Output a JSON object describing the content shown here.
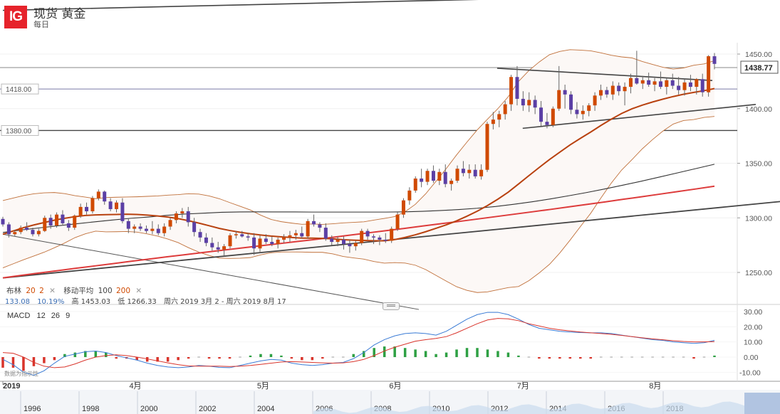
{
  "header": {
    "logo": "IG",
    "title": "现货 黄金",
    "subtitle": "每日"
  },
  "indicators": {
    "bollinger_label": "布林",
    "bollinger_period": "20",
    "bollinger_dev": "2",
    "ma_label": "移动平均",
    "ma_fast": "100",
    "ma_slow": "200",
    "close_icon": "close-icon",
    "value_1": "133.08",
    "value_2": "10.19%",
    "high_label": "高",
    "high_value": "1453.03",
    "low_label": "低",
    "low_value": "1266.33",
    "range_text": "周六 2019 3月 2 - 周六 2019 8月 17"
  },
  "macd": {
    "label": "MACD",
    "p1": "12",
    "p2": "26",
    "p3": "9"
  },
  "data_source": "数据为指示性",
  "colors": {
    "up": "#d04a02",
    "down": "#5b3fa5",
    "ma100": "#333333",
    "ma200": "#dd3b3b",
    "bb_mid": "#b8410f",
    "bb_band": "#c0703a",
    "trendline": "#555555",
    "macd_line": "#3a7bd5",
    "signal_line": "#d9342b",
    "hist_pos": "#2ea043",
    "hist_neg": "#d9342b"
  },
  "chart_data": {
    "type": "candlestick",
    "instrument": "现货 黄金",
    "timeframe": "每日",
    "price_axis": {
      "ticks": [
        1250.0,
        1300.0,
        1350.0,
        1400.0,
        1450.0
      ],
      "range": [
        1225,
        1505
      ]
    },
    "current_price": 1438.77,
    "horizontal_levels": [
      1418.0,
      1380.0
    ],
    "x_axis_labels": [
      "2019",
      "4月",
      "5月",
      "6月",
      "7月",
      "8月"
    ],
    "navigator_years": [
      "1996",
      "1998",
      "2000",
      "2002",
      "2004",
      "2006",
      "2008",
      "2010",
      "2012",
      "2014",
      "2016",
      "2018"
    ],
    "macd_axis": {
      "ticks": [
        30.0,
        20.0,
        10.0,
        0.0,
        -10.0
      ],
      "range": [
        -17,
        33
      ]
    },
    "start": "2019-03-01",
    "end": "2019-08-15",
    "candles": [
      [
        1299,
        1301,
        1292,
        1294
      ],
      [
        1294,
        1296,
        1282,
        1285
      ],
      [
        1285,
        1289,
        1283,
        1287
      ],
      [
        1287,
        1293,
        1285,
        1291
      ],
      [
        1291,
        1296,
        1288,
        1289
      ],
      [
        1289,
        1291,
        1283,
        1285
      ],
      [
        1285,
        1290,
        1283,
        1288
      ],
      [
        1288,
        1302,
        1287,
        1300
      ],
      [
        1300,
        1303,
        1290,
        1293
      ],
      [
        1293,
        1305,
        1291,
        1303
      ],
      [
        1303,
        1307,
        1293,
        1295
      ],
      [
        1295,
        1298,
        1288,
        1291
      ],
      [
        1291,
        1303,
        1289,
        1302
      ],
      [
        1302,
        1313,
        1300,
        1310
      ],
      [
        1310,
        1314,
        1303,
        1306
      ],
      [
        1306,
        1320,
        1304,
        1318
      ],
      [
        1318,
        1326,
        1316,
        1324
      ],
      [
        1324,
        1325,
        1312,
        1315
      ],
      [
        1315,
        1318,
        1306,
        1308
      ],
      [
        1308,
        1316,
        1305,
        1314
      ],
      [
        1314,
        1318,
        1295,
        1297
      ],
      [
        1297,
        1299,
        1286,
        1290
      ],
      [
        1290,
        1294,
        1286,
        1292
      ],
      [
        1292,
        1295,
        1288,
        1290
      ],
      [
        1290,
        1293,
        1286,
        1288
      ],
      [
        1288,
        1297,
        1285,
        1290
      ],
      [
        1290,
        1294,
        1284,
        1286
      ],
      [
        1286,
        1295,
        1283,
        1292
      ],
      [
        1292,
        1300,
        1289,
        1298
      ],
      [
        1298,
        1306,
        1295,
        1304
      ],
      [
        1304,
        1309,
        1300,
        1306
      ],
      [
        1306,
        1310,
        1292,
        1296
      ],
      [
        1296,
        1300,
        1283,
        1287
      ],
      [
        1287,
        1290,
        1278,
        1282
      ],
      [
        1282,
        1286,
        1274,
        1277
      ],
      [
        1277,
        1282,
        1270,
        1273
      ],
      [
        1273,
        1278,
        1268,
        1271
      ],
      [
        1271,
        1276,
        1265,
        1274
      ],
      [
        1274,
        1286,
        1272,
        1284
      ],
      [
        1284,
        1288,
        1281,
        1285
      ],
      [
        1285,
        1288,
        1282,
        1283
      ],
      [
        1283,
        1286,
        1279,
        1282
      ],
      [
        1282,
        1286,
        1266,
        1272
      ],
      [
        1272,
        1284,
        1269,
        1281
      ],
      [
        1281,
        1285,
        1276,
        1278
      ],
      [
        1278,
        1283,
        1274,
        1276
      ],
      [
        1276,
        1282,
        1272,
        1280
      ],
      [
        1280,
        1285,
        1277,
        1282
      ],
      [
        1282,
        1288,
        1278,
        1284
      ],
      [
        1284,
        1289,
        1280,
        1286
      ],
      [
        1286,
        1292,
        1281,
        1283
      ],
      [
        1283,
        1299,
        1281,
        1297
      ],
      [
        1297,
        1303,
        1292,
        1294
      ],
      [
        1294,
        1296,
        1287,
        1291
      ],
      [
        1291,
        1295,
        1279,
        1281
      ],
      [
        1281,
        1284,
        1275,
        1278
      ],
      [
        1278,
        1283,
        1274,
        1280
      ],
      [
        1280,
        1283,
        1271,
        1276
      ],
      [
        1276,
        1280,
        1268,
        1274
      ],
      [
        1274,
        1279,
        1270,
        1277
      ],
      [
        1277,
        1290,
        1275,
        1288
      ],
      [
        1288,
        1290,
        1280,
        1283
      ],
      [
        1283,
        1285,
        1276,
        1282
      ],
      [
        1282,
        1284,
        1275,
        1280
      ],
      [
        1280,
        1286,
        1277,
        1279
      ],
      [
        1279,
        1292,
        1277,
        1290
      ],
      [
        1290,
        1305,
        1288,
        1303
      ],
      [
        1303,
        1318,
        1300,
        1316
      ],
      [
        1316,
        1328,
        1312,
        1325
      ],
      [
        1325,
        1338,
        1323,
        1336
      ],
      [
        1336,
        1345,
        1328,
        1333
      ],
      [
        1333,
        1345,
        1330,
        1343
      ],
      [
        1343,
        1348,
        1332,
        1334
      ],
      [
        1334,
        1345,
        1330,
        1342
      ],
      [
        1342,
        1349,
        1328,
        1331
      ],
      [
        1331,
        1336,
        1325,
        1334
      ],
      [
        1334,
        1348,
        1332,
        1345
      ],
      [
        1345,
        1352,
        1338,
        1341
      ],
      [
        1341,
        1349,
        1336,
        1344
      ],
      [
        1344,
        1349,
        1336,
        1338
      ],
      [
        1338,
        1349,
        1335,
        1344
      ],
      [
        1344,
        1388,
        1342,
        1386
      ],
      [
        1386,
        1397,
        1381,
        1390
      ],
      [
        1390,
        1398,
        1383,
        1395
      ],
      [
        1395,
        1407,
        1390,
        1404
      ],
      [
        1404,
        1431,
        1398,
        1429
      ],
      [
        1429,
        1439,
        1403,
        1409
      ],
      [
        1409,
        1416,
        1398,
        1403
      ],
      [
        1403,
        1415,
        1397,
        1408
      ],
      [
        1408,
        1412,
        1395,
        1401
      ],
      [
        1401,
        1407,
        1384,
        1388
      ],
      [
        1388,
        1396,
        1382,
        1385
      ],
      [
        1385,
        1402,
        1383,
        1400
      ],
      [
        1400,
        1439,
        1398,
        1417
      ],
      [
        1417,
        1422,
        1400,
        1413
      ],
      [
        1413,
        1416,
        1395,
        1399
      ],
      [
        1399,
        1406,
        1391,
        1395
      ],
      [
        1395,
        1403,
        1390,
        1398
      ],
      [
        1398,
        1405,
        1393,
        1403
      ],
      [
        1403,
        1415,
        1398,
        1412
      ],
      [
        1412,
        1422,
        1408,
        1417
      ],
      [
        1417,
        1420,
        1410,
        1413
      ],
      [
        1413,
        1425,
        1408,
        1421
      ],
      [
        1421,
        1424,
        1412,
        1416
      ],
      [
        1416,
        1424,
        1403,
        1420
      ],
      [
        1420,
        1432,
        1414,
        1428
      ],
      [
        1428,
        1453,
        1422,
        1423
      ],
      [
        1423,
        1430,
        1418,
        1426
      ],
      [
        1426,
        1433,
        1420,
        1422
      ],
      [
        1422,
        1428,
        1416,
        1425
      ],
      [
        1425,
        1434,
        1418,
        1420
      ],
      [
        1420,
        1428,
        1413,
        1426
      ],
      [
        1426,
        1432,
        1418,
        1421
      ],
      [
        1421,
        1429,
        1413,
        1417
      ],
      [
        1417,
        1427,
        1412,
        1424
      ],
      [
        1424,
        1431,
        1416,
        1420
      ],
      [
        1420,
        1428,
        1413,
        1427
      ],
      [
        1427,
        1432,
        1411,
        1415
      ],
      [
        1415,
        1449,
        1411,
        1448
      ],
      [
        1448,
        1451,
        1436,
        1441
      ]
    ],
    "ma100": [
      1286.6,
      1288.9,
      1290.8,
      1292.7,
      1294.5,
      1296.3,
      1298.0,
      1299.6,
      1300.8,
      1302.3,
      1303.5,
      1304.3,
      1305.1,
      1305.4,
      1305.5,
      1305.4,
      1305.4,
      1305.3,
      1305.3,
      1305.3,
      1305.3,
      1305.3,
      1305.5,
      1306.0,
      1306.7,
      1307.6,
      1308.8,
      1310.4,
      1312.4,
      1314.7,
      1317.3,
      1320.2,
      1323.2,
      1326.5,
      1330.0,
      1333.6,
      1337.4,
      1341.3,
      1345.2,
      1349.1
    ],
    "ma200": [
      1245.0,
      1247.3,
      1249.5,
      1251.6,
      1253.8,
      1255.9,
      1258.0,
      1260.2,
      1262.2,
      1264.3,
      1266.3,
      1268.3,
      1270.3,
      1272.2,
      1274.2,
      1276.1,
      1278.1,
      1280.0,
      1282.0,
      1284.1,
      1286.2,
      1288.3,
      1290.3,
      1292.5,
      1294.6,
      1296.7,
      1298.9,
      1301.1,
      1303.3,
      1305.5,
      1307.7,
      1310.0,
      1312.3,
      1314.6,
      1317.0,
      1319.3,
      1321.7,
      1324.1,
      1326.5,
      1329.0
    ],
    "bollinger_mid": [
      1285.0,
      1288.0,
      1291.0,
      1293.5,
      1295.7,
      1297.9,
      1299.6,
      1301.1,
      1302.2,
      1302.7,
      1302.9,
      1303.1,
      1303.3,
      1303.1,
      1302.5,
      1301.7,
      1300.7,
      1299.3,
      1297.4,
      1295.2,
      1292.8,
      1290.3,
      1288.4,
      1286.8,
      1285.4,
      1284.3,
      1283.3,
      1282.6,
      1282.0,
      1281.4,
      1281.4,
      1281.2,
      1280.8,
      1280.0,
      1279.6,
      1279.3,
      1279.0,
      1279.0,
      1280.1,
      1282.1,
      1284.5,
      1287.3,
      1290.4,
      1293.6,
      1297.3,
      1301.5,
      1306.1,
      1311.3,
      1317.1,
      1323.5,
      1331.0,
      1338.6,
      1346.1,
      1353.4,
      1360.1,
      1366.8,
      1372.8,
      1378.6,
      1384.7,
      1390.4,
      1395.6,
      1399.9,
      1403.2,
      1406.1,
      1408.7,
      1411.1,
      1413.2,
      1414.9,
      1416.5,
      1418.4
    ],
    "bollinger_upper": [
      1315.8,
      1318.1,
      1320.4,
      1322.0,
      1322.9,
      1323.2,
      1322.2,
      1320.3,
      1319.0,
      1317.6,
      1318.6,
      1318.9,
      1319.1,
      1319.3,
      1319.7,
      1320.1,
      1320.8,
      1321.3,
      1322.1,
      1321.8,
      1320.1,
      1317.5,
      1314.0,
      1310.6,
      1307.2,
      1302.5,
      1298.6,
      1296.5,
      1295.2,
      1294.1,
      1294.4,
      1294.0,
      1294.6,
      1295.4,
      1295.9,
      1296.4,
      1298.0,
      1299.5,
      1301.2,
      1305.6,
      1312.4,
      1322.0,
      1333.5,
      1345.2,
      1357.7,
      1369.4,
      1380.6,
      1390.4,
      1400.0,
      1410.9,
      1424.9,
      1434.8,
      1442.7,
      1449.4,
      1452.4,
      1454.0,
      1453.6,
      1453.0,
      1451.1,
      1448.9,
      1447.4,
      1446.5,
      1443.2,
      1440.5,
      1437.9,
      1436.3,
      1437.3,
      1439.8,
      1441.0,
      1443.9
    ],
    "bollinger_lower": [
      1254.2,
      1257.9,
      1261.6,
      1265.0,
      1268.5,
      1272.6,
      1277.0,
      1281.9,
      1285.4,
      1287.8,
      1287.2,
      1287.3,
      1287.5,
      1286.9,
      1285.3,
      1283.3,
      1280.6,
      1277.3,
      1272.7,
      1268.6,
      1265.5,
      1263.1,
      1262.8,
      1263.0,
      1263.6,
      1266.1,
      1268.0,
      1268.7,
      1268.8,
      1268.7,
      1268.4,
      1268.4,
      1267.0,
      1264.6,
      1263.3,
      1262.2,
      1260.0,
      1258.5,
      1259.0,
      1258.6,
      1256.6,
      1252.6,
      1247.3,
      1242.0,
      1236.9,
      1233.6,
      1231.6,
      1232.2,
      1234.2,
      1236.1,
      1237.1,
      1242.4,
      1249.5,
      1257.4,
      1267.8,
      1279.6,
      1292.0,
      1304.2,
      1318.3,
      1331.9,
      1343.8,
      1353.3,
      1363.2,
      1371.7,
      1379.5,
      1385.9,
      1389.1,
      1390.0,
      1392.0,
      1392.9
    ],
    "resistance_trendline": [
      [
        "2019-06-25",
        1437
      ],
      [
        "2019-08-09",
        1427
      ]
    ],
    "support_trendline": [
      [
        "2019-07-01",
        1382
      ],
      [
        "2019-08-15",
        1400
      ]
    ],
    "long_support_trendline": [
      [
        "2019-03-01",
        1245
      ],
      [
        "2019-08-15",
        1309
      ]
    ],
    "long_resistance_trendline": [
      [
        "2019-03-01",
        1490
      ],
      [
        "2019-08-15",
        1505
      ]
    ],
    "falling_trendline": [
      [
        "2019-03-01",
        1285
      ],
      [
        "2019-05-25",
        1225
      ]
    ],
    "macd_line": [
      -1.5,
      -5.0,
      -10.0,
      -12.0,
      -9.0,
      -4.0,
      0.5,
      2.0,
      3.5,
      4.0,
      3.0,
      1.0,
      -0.5,
      -2.0,
      -4.0,
      -5.5,
      -6.5,
      -7.0,
      -6.5,
      -5.5,
      -6.0,
      -6.8,
      -7.0,
      -5.5,
      -4.0,
      -2.5,
      -1.5,
      -2.0,
      -4.0,
      -5.0,
      -5.5,
      -5.0,
      -4.0,
      -3.5,
      -1.0,
      3.0,
      8.0,
      11.5,
      14.0,
      15.5,
      16.0,
      15.5,
      14.5,
      17.0,
      21.0,
      25.0,
      28.0,
      29.5,
      29.5,
      28.0,
      25.0,
      21.5,
      19.0,
      18.0,
      17.0,
      16.5,
      16.2,
      16.0,
      16.0,
      15.5,
      14.5,
      13.5,
      12.5,
      11.5,
      11.0,
      10.0,
      9.5,
      9.0,
      9.5,
      11.0
    ],
    "signal_line": [
      3.0,
      2.5,
      0.0,
      -3.5,
      -6.0,
      -7.0,
      -6.5,
      -4.5,
      -2.0,
      0.0,
      1.0,
      1.5,
      1.0,
      0.0,
      -1.2,
      -2.5,
      -3.8,
      -5.0,
      -5.8,
      -6.0,
      -6.0,
      -6.0,
      -6.2,
      -6.0,
      -5.5,
      -4.8,
      -4.0,
      -3.2,
      -3.0,
      -3.2,
      -3.5,
      -3.8,
      -4.0,
      -3.8,
      -3.0,
      -1.5,
      1.0,
      4.0,
      6.5,
      8.5,
      10.5,
      11.5,
      12.3,
      13.5,
      16.0,
      19.0,
      22.0,
      24.5,
      25.5,
      25.2,
      24.0,
      22.0,
      20.5,
      19.0,
      18.0,
      17.2,
      16.5,
      16.0,
      15.5,
      15.0,
      14.3,
      13.5,
      12.7,
      12.0,
      11.4,
      10.8,
      10.3,
      10.0,
      10.0,
      10.2
    ],
    "macd_histogram": [
      -7,
      -7,
      -9,
      -6,
      -4,
      -2,
      2,
      3,
      4,
      4,
      3,
      -1,
      -1,
      -2,
      -3,
      -3,
      -3,
      -2,
      -1,
      0,
      -1,
      -1,
      -1,
      0,
      1,
      2,
      2,
      1,
      -1,
      -2,
      -2,
      -1,
      0,
      0,
      2,
      4,
      6,
      7,
      7,
      6,
      5,
      4,
      2,
      3,
      5,
      6,
      6,
      5,
      4,
      3,
      1,
      0,
      -1,
      -1,
      -1,
      -1,
      -1,
      -1,
      0,
      0,
      0,
      0,
      0,
      0,
      0,
      0,
      0,
      -1,
      0,
      1
    ]
  }
}
